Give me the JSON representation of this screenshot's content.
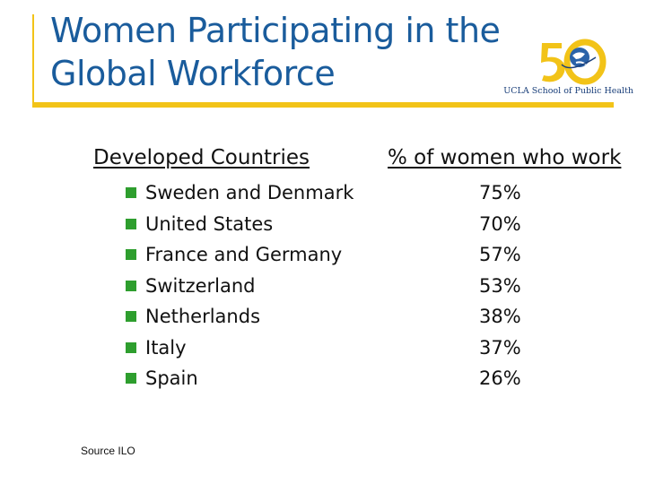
{
  "slide": {
    "title_line1": "Women Participating in the",
    "title_line2": "Global Workforce",
    "logo_text": "UCLA School of Public Health",
    "left_heading": "Developed Countries",
    "right_heading": "% of women who work",
    "source": "Source ILO",
    "accent_color": "#f2c318",
    "title_color": "#1a5c9c",
    "bullet_color": "#2e9e2e"
  },
  "rows": [
    {
      "country": "Sweden and Denmark",
      "percent": "75%"
    },
    {
      "country": "United States",
      "percent": "70%"
    },
    {
      "country": "France and Germany",
      "percent": "57%"
    },
    {
      "country": "Switzerland",
      "percent": "53%"
    },
    {
      "country": "Netherlands",
      "percent": "38%"
    },
    {
      "country": "Italy",
      "percent": "37%"
    },
    {
      "country": "Spain",
      "percent": "26%"
    }
  ]
}
